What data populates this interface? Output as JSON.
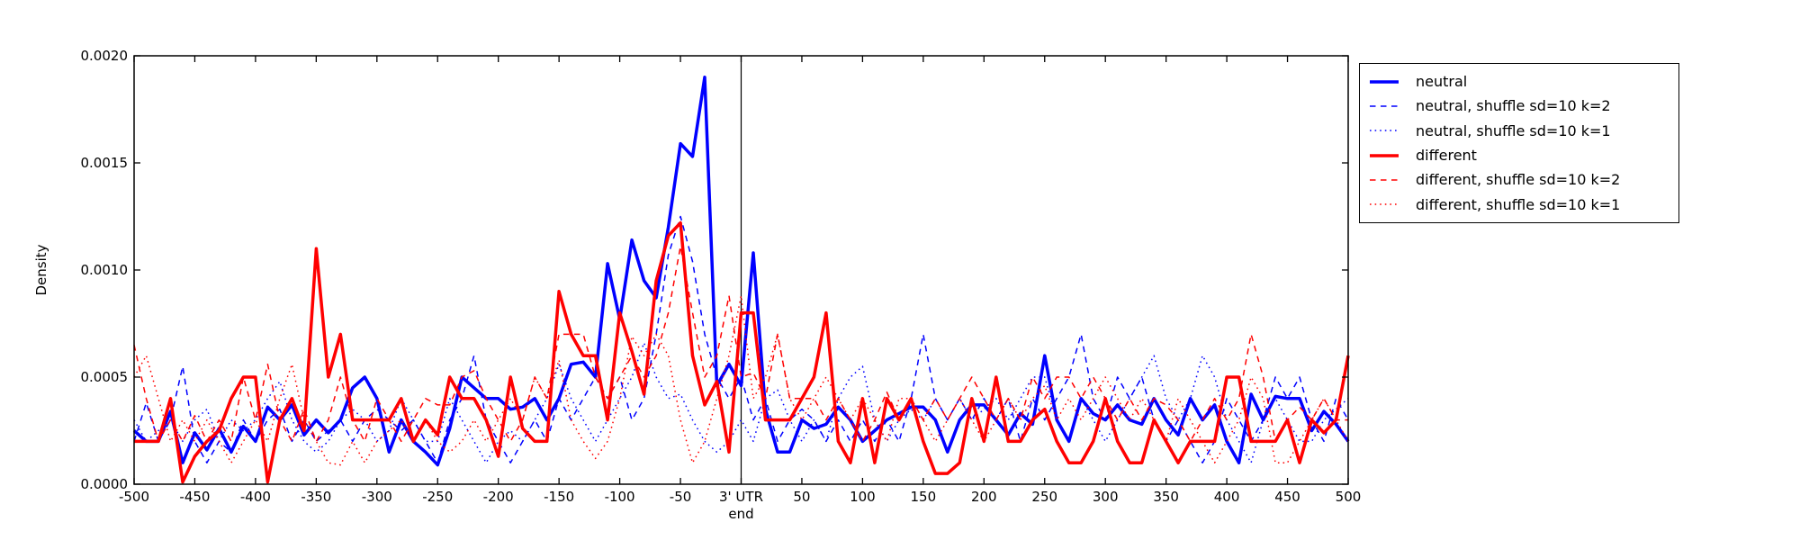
{
  "colors": {
    "neutral": "#0000ff",
    "different": "#ff0000",
    "axis": "#000000",
    "background": "#ffffff"
  },
  "chart_data": {
    "type": "line",
    "title": "",
    "ylabel": "Density",
    "xlabel": "",
    "xlim": [
      -500,
      500
    ],
    "ylim": [
      0,
      0.002
    ],
    "grid": false,
    "vline_x": 0,
    "legend_position": "upper right outside",
    "yticks": {
      "values": [
        0,
        0.0005,
        0.001,
        0.0015,
        0.002
      ],
      "labels": [
        "0.0000",
        "0.0005",
        "0.0010",
        "0.0015",
        "0.0020"
      ]
    },
    "xticks": {
      "values": [
        -500,
        -450,
        -400,
        -350,
        -300,
        -250,
        -200,
        -150,
        -100,
        -50,
        0,
        50,
        100,
        150,
        200,
        250,
        300,
        350,
        400,
        450,
        500
      ],
      "labels": [
        "-500",
        "-450",
        "-400",
        "-350",
        "-300",
        "-250",
        "-200",
        "-150",
        "-100",
        "-50",
        "3' UTR\nend",
        "50",
        "100",
        "150",
        "200",
        "250",
        "300",
        "350",
        "400",
        "450",
        "500"
      ]
    },
    "x": [
      -500,
      -490,
      -480,
      -470,
      -460,
      -450,
      -440,
      -430,
      -420,
      -410,
      -400,
      -390,
      -380,
      -370,
      -360,
      -350,
      -340,
      -330,
      -320,
      -310,
      -300,
      -290,
      -280,
      -270,
      -260,
      -250,
      -240,
      -230,
      -220,
      -210,
      -200,
      -190,
      -180,
      -170,
      -160,
      -150,
      -140,
      -130,
      -120,
      -110,
      -100,
      -90,
      -80,
      -70,
      -60,
      -50,
      -40,
      -30,
      -20,
      -10,
      0,
      10,
      20,
      30,
      40,
      50,
      60,
      70,
      80,
      90,
      100,
      110,
      120,
      130,
      140,
      150,
      160,
      170,
      180,
      190,
      200,
      210,
      220,
      230,
      240,
      250,
      260,
      270,
      280,
      290,
      300,
      310,
      320,
      330,
      340,
      350,
      360,
      370,
      380,
      390,
      400,
      410,
      420,
      430,
      440,
      450,
      460,
      470,
      480,
      490,
      500
    ],
    "series": [
      {
        "name": "neutral",
        "color": "#0000ff",
        "style": "solid",
        "linewidth": 3.5,
        "values": [
          0.00025,
          0.0002,
          0.0002,
          0.00034,
          0.0001,
          0.00024,
          0.00016,
          0.00026,
          0.00015,
          0.00027,
          0.0002,
          0.00036,
          0.0003,
          0.00037,
          0.00023,
          0.0003,
          0.00024,
          0.0003,
          0.00045,
          0.0005,
          0.0004,
          0.00015,
          0.0003,
          0.0002,
          0.00015,
          9e-05,
          0.00026,
          0.0005,
          0.00045,
          0.0004,
          0.0004,
          0.00035,
          0.00036,
          0.0004,
          0.0003,
          0.0004,
          0.00056,
          0.00057,
          0.0005,
          0.00103,
          0.00077,
          0.00114,
          0.00095,
          0.00087,
          0.0012,
          0.00159,
          0.00153,
          0.0019,
          0.00046,
          0.00056,
          0.00046,
          0.00108,
          0.00035,
          0.00015,
          0.00015,
          0.0003,
          0.00026,
          0.00028,
          0.00036,
          0.0003,
          0.0002,
          0.00025,
          0.0003,
          0.00033,
          0.00036,
          0.00036,
          0.0003,
          0.00015,
          0.0003,
          0.00037,
          0.00037,
          0.0003,
          0.00023,
          0.00033,
          0.00028,
          0.0006,
          0.0003,
          0.0002,
          0.0004,
          0.00033,
          0.0003,
          0.00037,
          0.0003,
          0.00028,
          0.0004,
          0.0003,
          0.00023,
          0.0004,
          0.0003,
          0.00037,
          0.0002,
          0.0001,
          0.00042,
          0.0003,
          0.00041,
          0.0004,
          0.0004,
          0.00025,
          0.00034,
          0.00028,
          0.0002
        ]
      },
      {
        "name": "neutral, shuffle sd=10 k=2",
        "color": "#0000ff",
        "style": "dashed",
        "linewidth": 1.5,
        "values": [
          0.0002,
          0.00038,
          0.0002,
          0.0003,
          0.00055,
          0.0002,
          0.0001,
          0.0002,
          0.00015,
          0.0003,
          0.0002,
          0.0003,
          0.00035,
          0.0002,
          0.0003,
          0.0002,
          0.00025,
          0.0003,
          0.0002,
          0.0003,
          0.00035,
          0.0003,
          0.00025,
          0.0003,
          0.0002,
          0.0001,
          0.0003,
          0.0004,
          0.0006,
          0.0003,
          0.0002,
          0.0001,
          0.0002,
          0.0003,
          0.0002,
          0.0004,
          0.0003,
          0.0004,
          0.0005,
          0.0004,
          0.0005,
          0.0003,
          0.0004,
          0.0007,
          0.00107,
          0.00125,
          0.00104,
          0.0007,
          0.0005,
          0.0004,
          0.0005,
          0.0003,
          0.0004,
          0.0002,
          0.0003,
          0.00035,
          0.0003,
          0.0002,
          0.0003,
          0.0002,
          0.0003,
          0.0002,
          0.0003,
          0.0002,
          0.0004,
          0.0007,
          0.0004,
          0.0003,
          0.0004,
          0.0003,
          0.0004,
          0.0003,
          0.0004,
          0.0002,
          0.0004,
          0.0003,
          0.0004,
          0.0005,
          0.0007,
          0.0004,
          0.0003,
          0.0005,
          0.0004,
          0.0005,
          0.0003,
          0.0002,
          0.0003,
          0.0002,
          0.0001,
          0.0002,
          0.0004,
          0.0003,
          0.0002,
          0.0003,
          0.0005,
          0.0004,
          0.0005,
          0.0003,
          0.0002,
          0.0004,
          0.0003
        ]
      },
      {
        "name": "neutral, shuffle sd=10 k=1",
        "color": "#0000ff",
        "style": "dotted",
        "linewidth": 1.5,
        "values": [
          0.0003,
          0.0002,
          0.00025,
          0.0003,
          0.0002,
          0.0003,
          0.00035,
          0.0002,
          0.0003,
          0.00025,
          0.0003,
          0.0004,
          0.00048,
          0.0003,
          0.0002,
          0.00015,
          0.0002,
          0.0003,
          0.00035,
          0.0003,
          0.0002,
          0.00025,
          0.0004,
          0.0003,
          0.0002,
          0.0002,
          0.0004,
          0.0003,
          0.0002,
          0.0001,
          0.0002,
          0.00025,
          0.0002,
          0.0003,
          0.0004,
          0.00056,
          0.0004,
          0.0003,
          0.0002,
          0.0003,
          0.0004,
          0.0005,
          0.00066,
          0.0005,
          0.0004,
          0.00042,
          0.0003,
          0.0002,
          0.00015,
          0.0002,
          0.0003,
          0.0002,
          0.0004,
          0.00044,
          0.0003,
          0.0002,
          0.0003,
          0.0002,
          0.0004,
          0.0005,
          0.00055,
          0.0003,
          0.0002,
          0.0003,
          0.00035,
          0.0003,
          0.0004,
          0.0003,
          0.0004,
          0.0003,
          0.00035,
          0.0004,
          0.0003,
          0.0004,
          0.0005,
          0.0005,
          0.0003,
          0.0002,
          0.0004,
          0.0003,
          0.0002,
          0.0003,
          0.0004,
          0.0005,
          0.0006,
          0.0004,
          0.0003,
          0.0004,
          0.0006,
          0.0005,
          0.0003,
          0.0002,
          0.0001,
          0.0003,
          0.0004,
          0.0003,
          0.0002,
          0.0002,
          0.0003,
          0.00035,
          0.0004
        ]
      },
      {
        "name": "different",
        "color": "#ff0000",
        "style": "solid",
        "linewidth": 3.5,
        "values": [
          0.0002,
          0.0002,
          0.0002,
          0.0004,
          1e-05,
          0.00013,
          0.0002,
          0.00025,
          0.0004,
          0.0005,
          0.0005,
          1e-05,
          0.0003,
          0.0004,
          0.00025,
          0.0011,
          0.0005,
          0.0007,
          0.0003,
          0.0003,
          0.0003,
          0.0003,
          0.0004,
          0.0002,
          0.0003,
          0.00023,
          0.0005,
          0.0004,
          0.0004,
          0.0003,
          0.00013,
          0.0005,
          0.00026,
          0.0002,
          0.0002,
          0.0009,
          0.0007,
          0.0006,
          0.0006,
          0.0003,
          0.0008,
          0.00062,
          0.00042,
          0.00095,
          0.00116,
          0.00122,
          0.0006,
          0.00037,
          0.00048,
          0.00015,
          0.0008,
          0.0008,
          0.0003,
          0.0003,
          0.0003,
          0.0004,
          0.0005,
          0.0008,
          0.0002,
          0.0001,
          0.0004,
          0.0001,
          0.0004,
          0.0003,
          0.0004,
          0.0002,
          5e-05,
          5e-05,
          0.0001,
          0.0004,
          0.0002,
          0.0005,
          0.0002,
          0.0002,
          0.0003,
          0.00035,
          0.0002,
          0.0001,
          0.0001,
          0.0002,
          0.0004,
          0.0002,
          0.0001,
          0.0001,
          0.0003,
          0.0002,
          0.0001,
          0.0002,
          0.0002,
          0.0002,
          0.0005,
          0.0005,
          0.0002,
          0.0002,
          0.0002,
          0.0003,
          0.0001,
          0.0003,
          0.00024,
          0.0003,
          0.0006
        ]
      },
      {
        "name": "different, shuffle sd=10 k=2",
        "color": "#ff0000",
        "style": "dashed",
        "linewidth": 1.5,
        "values": [
          0.00065,
          0.0004,
          0.0002,
          0.0003,
          0.0002,
          0.00032,
          0.0002,
          0.0003,
          0.0002,
          0.0005,
          0.0003,
          0.00056,
          0.0003,
          0.0002,
          0.00035,
          0.0002,
          0.0003,
          0.0005,
          0.0003,
          0.0002,
          0.0004,
          0.0003,
          0.0002,
          0.0003,
          0.0004,
          0.00037,
          0.00037,
          0.0005,
          0.00053,
          0.0004,
          0.0003,
          0.0002,
          0.0003,
          0.0005,
          0.0004,
          0.0007,
          0.0007,
          0.0007,
          0.0005,
          0.0004,
          0.0005,
          0.0006,
          0.0005,
          0.0006,
          0.0008,
          0.00111,
          0.0008,
          0.0005,
          0.0006,
          0.00088,
          0.0005,
          0.00052,
          0.0004,
          0.0007,
          0.0004,
          0.0004,
          0.0004,
          0.0003,
          0.0004,
          0.0003,
          0.0002,
          0.0003,
          0.00043,
          0.0003,
          0.0004,
          0.0003,
          0.0004,
          0.0003,
          0.0004,
          0.0005,
          0.0004,
          0.0003,
          0.0004,
          0.0003,
          0.0005,
          0.0004,
          0.0005,
          0.0005,
          0.0004,
          0.0005,
          0.0004,
          0.0003,
          0.0004,
          0.0003,
          0.0004,
          0.00037,
          0.0003,
          0.0002,
          0.0003,
          0.0004,
          0.0003,
          0.0004,
          0.0007,
          0.0005,
          0.0002,
          0.0003,
          0.00036,
          0.0003,
          0.0004,
          0.0003,
          0.0003
        ]
      },
      {
        "name": "different, shuffle sd=10 k=1",
        "color": "#ff0000",
        "style": "dotted",
        "linewidth": 1.5,
        "values": [
          0.0005,
          0.0006,
          0.0004,
          0.0002,
          0.0003,
          0.0002,
          0.0003,
          0.0002,
          0.0001,
          0.0002,
          0.0003,
          0.0002,
          0.0004,
          0.00056,
          0.0003,
          0.0002,
          0.0001,
          9e-05,
          0.0002,
          0.0001,
          0.0002,
          0.00025,
          0.0003,
          0.0002,
          0.0003,
          0.0002,
          0.00015,
          0.0002,
          0.0003,
          0.0002,
          0.0003,
          0.0004,
          0.0003,
          0.0005,
          0.0004,
          0.00058,
          0.0003,
          0.0002,
          0.00012,
          0.0002,
          0.0004,
          0.00069,
          0.0006,
          0.0007,
          0.0006,
          0.0003,
          0.0001,
          0.0002,
          0.0004,
          0.0006,
          0.00088,
          0.0004,
          0.0005,
          0.0007,
          0.0004,
          0.0003,
          0.0004,
          0.0005,
          0.0004,
          0.0003,
          0.0004,
          0.0003,
          0.0002,
          0.0004,
          0.0004,
          0.0003,
          0.0002,
          0.0003,
          0.0004,
          0.0003,
          0.0002,
          0.0003,
          0.0004,
          0.0003,
          0.0004,
          0.00046,
          0.0003,
          0.0004,
          0.0003,
          0.0004,
          0.0005,
          0.0004,
          0.0003,
          0.0004,
          0.0003,
          0.0002,
          0.0004,
          0.0003,
          0.0002,
          0.0001,
          0.0002,
          0.0003,
          0.0005,
          0.0004,
          0.0001,
          0.0001,
          0.0002,
          0.0003,
          0.0004,
          0.0003,
          0.0002
        ]
      }
    ]
  }
}
